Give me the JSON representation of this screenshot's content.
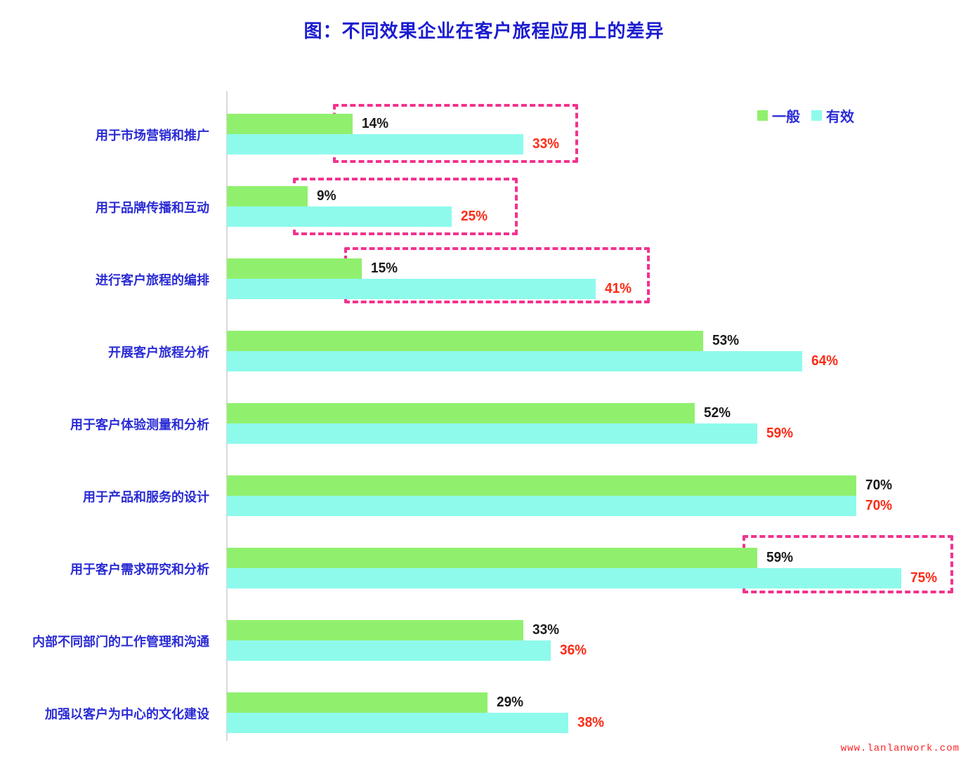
{
  "title": "图：不同效果企业在客户旅程应用上的差异",
  "watermark": "www.lanlanwork.com",
  "legend": {
    "items": [
      {
        "label": "一般",
        "color": "#90f06e"
      },
      {
        "label": "有效",
        "color": "#8efaec"
      }
    ]
  },
  "colors": {
    "title_text": "#1b1cd0",
    "category_text": "#2a2bd4",
    "general_bar": "#90f06e",
    "effective_bar": "#8efaec",
    "general_value_text": "#1a1a1a",
    "effective_value_text": "#fe2b16",
    "highlight_box": "#f1338f",
    "axis_line": "#d9d9d9"
  },
  "chart_data": {
    "type": "bar",
    "orientation": "horizontal",
    "title": "图：不同效果企业在客户旅程应用上的差异",
    "categories": [
      "用于市场营销和推广",
      "用于品牌传播和互动",
      "进行客户旅程的编排",
      "开展客户旅程分析",
      "用于客户体验测量和分析",
      "用于产品和服务的设计",
      "用于客户需求研究和分析",
      "内部不同部门的工作管理和沟通",
      "加强以客户为中心的文化建设"
    ],
    "series": [
      {
        "name": "一般",
        "color": "#90f06e",
        "values": [
          14,
          9,
          15,
          53,
          52,
          70,
          59,
          33,
          29
        ]
      },
      {
        "name": "有效",
        "color": "#8efaec",
        "values": [
          33,
          25,
          41,
          64,
          59,
          70,
          75,
          36,
          38
        ]
      }
    ],
    "value_suffix": "%",
    "xlim": [
      0,
      80
    ],
    "grid": false,
    "legend_position": "top-right",
    "highlighted_rows": [
      0,
      1,
      2,
      6
    ]
  }
}
